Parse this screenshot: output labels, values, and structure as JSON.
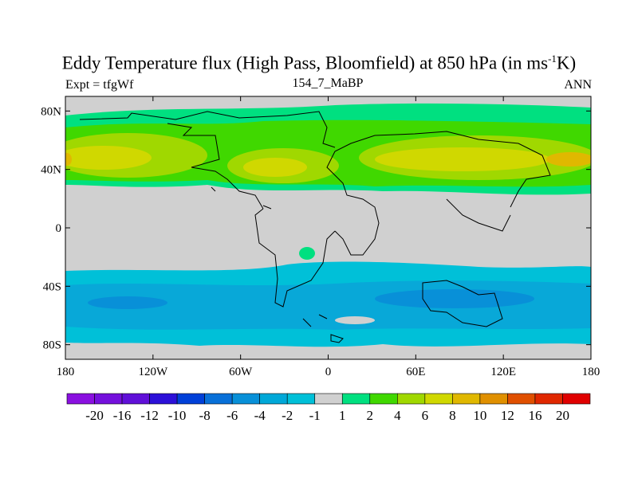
{
  "title": {
    "main": "Eddy Temperature flux (High Pass, Bloomfield) at 850 hPa (in ms",
    "sup": "-1",
    "unit_end": "K)"
  },
  "left_label": "Expt = tfgWf",
  "center_label": "154_7_MaBP",
  "right_label": "ANN",
  "chart_data": {
    "type": "heatmap",
    "title": "Eddy Temperature flux (High Pass, Bloomfield) at 850 hPa (in ms-1K)",
    "xlim": [
      -180,
      180
    ],
    "ylim": [
      -90,
      90
    ],
    "x_ticks": [
      {
        "v": -180,
        "l": "180"
      },
      {
        "v": -120,
        "l": "120W"
      },
      {
        "v": -60,
        "l": "60W"
      },
      {
        "v": 0,
        "l": "0"
      },
      {
        "v": 60,
        "l": "60E"
      },
      {
        "v": 120,
        "l": "120E"
      },
      {
        "v": 180,
        "l": "180"
      }
    ],
    "y_ticks": [
      {
        "v": 80,
        "l": "80N"
      },
      {
        "v": 40,
        "l": "40N"
      },
      {
        "v": 0,
        "l": "0"
      },
      {
        "v": -40,
        "l": "40S"
      },
      {
        "v": -80,
        "l": "80S"
      }
    ],
    "colorbar": {
      "levels": [
        "-20",
        "-16",
        "-12",
        "-10",
        "-8",
        "-6",
        "-4",
        "-2",
        "-1",
        "1",
        "2",
        "4",
        "6",
        "8",
        "10",
        "12",
        "16",
        "20"
      ],
      "colors": [
        "#8a10e0",
        "#7410dc",
        "#6010d8",
        "#2c10d8",
        "#0040d8",
        "#0870d8",
        "#0890d8",
        "#00a8d8",
        "#00c0d8",
        "#d0d0d0",
        "#00e080",
        "#40d800",
        "#a0d800",
        "#d0d800",
        "#e0b800",
        "#e09000",
        "#e05000",
        "#e02800",
        "#e00000"
      ]
    }
  }
}
